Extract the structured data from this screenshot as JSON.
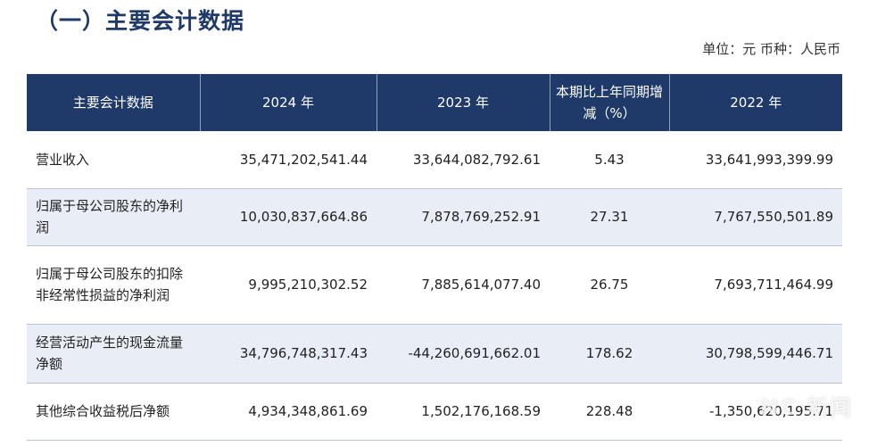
{
  "title": "（一）主要会计数据",
  "unit_line": "单位：元   币种：人民币",
  "table": {
    "headers": [
      "主要会计数据",
      "2024 年",
      "2023 年",
      "本期比上年同期增减（%）",
      "2022 年"
    ],
    "rows": [
      {
        "label": "营业收入",
        "y2024": "35,471,202,541.44",
        "y2023": "33,644,082,792.61",
        "change": "5.43",
        "y2022": "33,641,993,399.99"
      },
      {
        "label": "归属于母公司股东的净利润",
        "y2024": "10,030,837,664.86",
        "y2023": "7,878,769,252.91",
        "change": "27.31",
        "y2022": "7,767,550,501.89"
      },
      {
        "label": "归属于母公司股东的扣除非经常性损益的净利润",
        "y2024": "9,995,210,302.52",
        "y2023": "7,885,614,077.40",
        "change": "26.75",
        "y2022": "7,693,711,464.99"
      },
      {
        "label": "经营活动产生的现金流量净额",
        "y2024": "34,796,748,317.43",
        "y2023": "-44,260,691,662.01",
        "change": "178.62",
        "y2022": "30,798,599,446.71"
      },
      {
        "label": "其他综合收益税后净额",
        "y2024": "4,934,348,861.69",
        "y2023": "1,502,176,168.59",
        "change": "228.48",
        "y2022": "-1,350,620,195.71"
      }
    ]
  },
  "watermark": "NC 新闻"
}
